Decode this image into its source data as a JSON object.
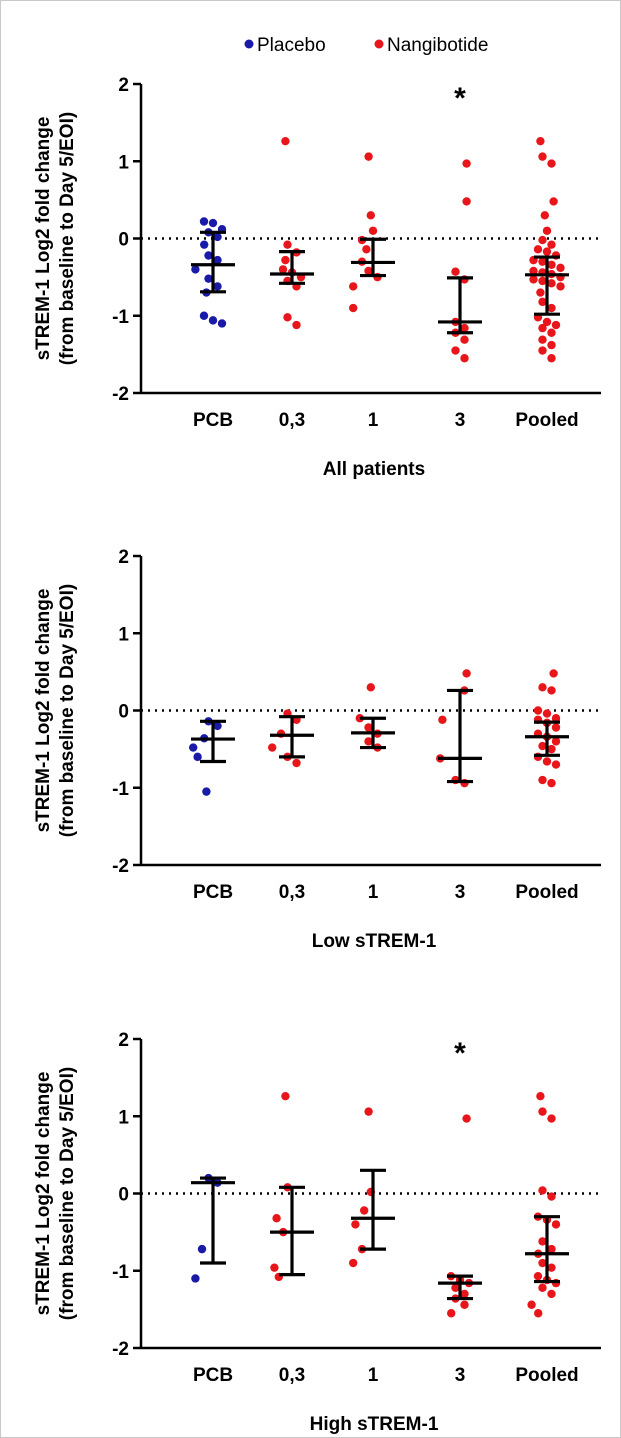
{
  "legend": {
    "position": "top-center",
    "items": [
      {
        "label": "Placebo",
        "color": "#1a1aa8"
      },
      {
        "label": "Nangibotide",
        "color": "#e8161b"
      }
    ]
  },
  "colors": {
    "errorbar": "#000000",
    "reference_line": "#000000"
  },
  "chart_data": [
    {
      "type": "scatter",
      "title": "All patients",
      "ylabel_line1": "sTREM-1 Log2 fold change",
      "ylabel_line2": "(from baseline to Day 5/EOI)",
      "categories": [
        "PCB",
        "0,3",
        "1",
        "3",
        "Pooled"
      ],
      "ylim": [
        -2,
        2
      ],
      "yticks": [
        2,
        1,
        0,
        -1,
        -2
      ],
      "reference_y": 0,
      "annotations": [
        {
          "category": "3",
          "y": 2,
          "text": "*"
        }
      ],
      "groups": [
        {
          "category": "PCB",
          "series": "Placebo",
          "median": -0.34,
          "q1": -0.69,
          "q3": 0.08,
          "points": [
            0.22,
            0.2,
            0.12,
            0.08,
            0.02,
            -0.08,
            -0.22,
            -0.28,
            -0.4,
            -0.52,
            -0.62,
            -0.7,
            -1.0,
            -1.06,
            -1.1
          ]
        },
        {
          "category": "0,3",
          "series": "Nangibotide",
          "median": -0.46,
          "q1": -0.58,
          "q3": -0.17,
          "points": [
            1.26,
            -0.08,
            -0.18,
            -0.28,
            -0.4,
            -0.44,
            -0.5,
            -0.55,
            -0.62,
            -1.02,
            -1.12
          ]
        },
        {
          "category": "1",
          "series": "Nangibotide",
          "median": -0.31,
          "q1": -0.48,
          "q3": -0.01,
          "points": [
            1.06,
            0.3,
            0.1,
            -0.02,
            -0.14,
            -0.3,
            -0.42,
            -0.5,
            -0.62,
            -0.9
          ]
        },
        {
          "category": "3",
          "series": "Nangibotide",
          "median": -1.08,
          "q1": -1.22,
          "q3": -0.51,
          "points": [
            0.97,
            0.48,
            -0.43,
            -0.53,
            -1.08,
            -1.16,
            -1.22,
            -1.31,
            -1.45,
            -1.55
          ]
        },
        {
          "category": "Pooled",
          "series": "Nangibotide",
          "median": -0.47,
          "q1": -0.98,
          "q3": -0.24,
          "points": [
            1.26,
            1.06,
            0.97,
            0.48,
            0.3,
            0.1,
            -0.02,
            -0.08,
            -0.14,
            -0.17,
            -0.22,
            -0.28,
            -0.3,
            -0.34,
            -0.38,
            -0.42,
            -0.44,
            -0.46,
            -0.5,
            -0.53,
            -0.55,
            -0.58,
            -0.62,
            -0.7,
            -0.82,
            -0.9,
            -1.02,
            -1.08,
            -1.12,
            -1.16,
            -1.22,
            -1.31,
            -1.38,
            -1.45,
            -1.55
          ]
        }
      ]
    },
    {
      "type": "scatter",
      "title": "Low sTREM-1",
      "ylabel_line1": "sTREM-1 Log2 fold change",
      "ylabel_line2": "(from baseline to Day 5/EOI)",
      "categories": [
        "PCB",
        "0,3",
        "1",
        "3",
        "Pooled"
      ],
      "ylim": [
        -2,
        2
      ],
      "yticks": [
        2,
        1,
        0,
        -1,
        -2
      ],
      "reference_y": 0,
      "annotations": [],
      "groups": [
        {
          "category": "PCB",
          "series": "Placebo",
          "median": -0.37,
          "q1": -0.66,
          "q3": -0.14,
          "points": [
            -0.14,
            -0.2,
            -0.36,
            -0.48,
            -0.6,
            -1.05
          ]
        },
        {
          "category": "0,3",
          "series": "Nangibotide",
          "median": -0.32,
          "q1": -0.6,
          "q3": -0.08,
          "points": [
            -0.04,
            -0.12,
            -0.3,
            -0.48,
            -0.6,
            -0.68
          ]
        },
        {
          "category": "1",
          "series": "Nangibotide",
          "median": -0.29,
          "q1": -0.48,
          "q3": -0.1,
          "points": [
            0.3,
            -0.1,
            -0.22,
            -0.3,
            -0.4,
            -0.48
          ]
        },
        {
          "category": "3",
          "series": "Nangibotide",
          "median": -0.62,
          "q1": -0.92,
          "q3": 0.26,
          "points": [
            0.48,
            0.26,
            -0.12,
            -0.62,
            -0.9,
            -0.94
          ]
        },
        {
          "category": "Pooled",
          "series": "Nangibotide",
          "median": -0.34,
          "q1": -0.58,
          "q3": -0.15,
          "points": [
            0.48,
            0.3,
            0.26,
            0.0,
            -0.04,
            -0.1,
            -0.12,
            -0.16,
            -0.22,
            -0.3,
            -0.34,
            -0.4,
            -0.46,
            -0.5,
            -0.6,
            -0.66,
            -0.7,
            -0.9,
            -0.94
          ]
        }
      ]
    },
    {
      "type": "scatter",
      "title": "High sTREM-1",
      "ylabel_line1": "sTREM-1 Log2 fold change",
      "ylabel_line2": "(from baseline to Day 5/EOI)",
      "categories": [
        "PCB",
        "0,3",
        "1",
        "3",
        "Pooled"
      ],
      "ylim": [
        -2,
        2
      ],
      "yticks": [
        2,
        1,
        0,
        -1,
        -2
      ],
      "reference_y": 0,
      "annotations": [
        {
          "category": "3",
          "y": 2,
          "text": "*"
        }
      ],
      "groups": [
        {
          "category": "PCB",
          "series": "Placebo",
          "median": 0.14,
          "q1": -0.9,
          "q3": 0.2,
          "points": [
            0.2,
            0.14,
            -0.72,
            -1.1
          ]
        },
        {
          "category": "0,3",
          "series": "Nangibotide",
          "median": -0.5,
          "q1": -1.05,
          "q3": 0.08,
          "points": [
            1.26,
            0.08,
            -0.32,
            -0.5,
            -0.96,
            -1.08
          ]
        },
        {
          "category": "1",
          "series": "Nangibotide",
          "median": -0.32,
          "q1": -0.72,
          "q3": 0.3,
          "points": [
            1.06,
            0.02,
            -0.22,
            -0.4,
            -0.72,
            -0.9
          ]
        },
        {
          "category": "3",
          "series": "Nangibotide",
          "median": -1.16,
          "q1": -1.36,
          "q3": -1.07,
          "points": [
            0.97,
            -1.07,
            -1.12,
            -1.16,
            -1.22,
            -1.3,
            -1.36,
            -1.44,
            -1.55
          ]
        },
        {
          "category": "Pooled",
          "series": "Nangibotide",
          "median": -0.78,
          "q1": -1.14,
          "q3": -0.3,
          "points": [
            1.26,
            1.06,
            0.97,
            0.04,
            -0.04,
            -0.3,
            -0.34,
            -0.4,
            -0.62,
            -0.72,
            -0.78,
            -0.9,
            -0.96,
            -1.07,
            -1.12,
            -1.16,
            -1.22,
            -1.3,
            -1.44,
            -1.55
          ]
        }
      ]
    }
  ]
}
